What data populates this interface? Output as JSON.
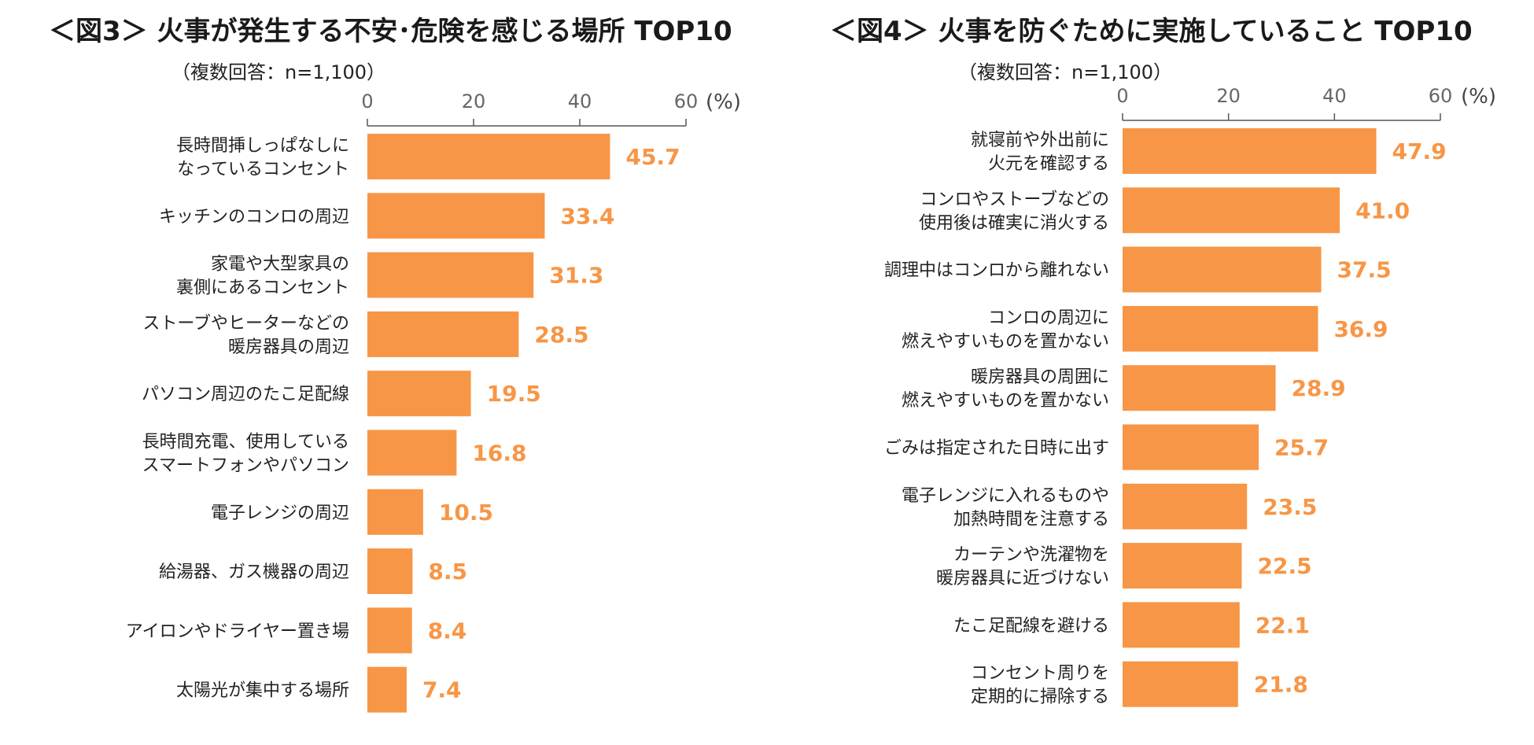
{
  "chart_data": [
    {
      "type": "bar",
      "orientation": "horizontal",
      "title": "＜図3＞ 火事が発生する不安･危険を感じる場所 TOP10",
      "subtitle": "（複数回答：n=1,100）",
      "unit": "(%)",
      "xlim": [
        0,
        60
      ],
      "ticks": [
        0,
        20,
        40,
        60
      ],
      "categories": [
        "長時間挿しっぱなしに\nなっているコンセント",
        "キッチンのコンロの周辺",
        "家電や大型家具の\n裏側にあるコンセント",
        "ストーブやヒーターなどの\n暖房器具の周辺",
        "パソコン周辺のたこ足配線",
        "長時間充電、使用している\nスマートフォンやパソコン",
        "電子レンジの周辺",
        "給湯器、ガス機器の周辺",
        "アイロンやドライヤー置き場",
        "太陽光が集中する場所"
      ],
      "values": [
        45.7,
        33.4,
        31.3,
        28.5,
        19.5,
        16.8,
        10.5,
        8.5,
        8.4,
        7.4
      ],
      "bar_color": "#F79646",
      "value_label_color": "#F79646"
    },
    {
      "type": "bar",
      "orientation": "horizontal",
      "title": "＜図4＞ 火事を防ぐために実施していること TOP10",
      "subtitle": "（複数回答：n=1,100）",
      "unit": "(%)",
      "xlim": [
        0,
        60
      ],
      "ticks": [
        0,
        20,
        40,
        60
      ],
      "categories": [
        "就寝前や外出前に\n火元を確認する",
        "コンロやストーブなどの\n使用後は確実に消火する",
        "調理中はコンロから離れない",
        "コンロの周辺に\n燃えやすいものを置かない",
        "暖房器具の周囲に\n燃えやすいものを置かない",
        "ごみは指定された日時に出す",
        "電子レンジに入れるものや\n加熱時間を注意する",
        "カーテンや洗濯物を\n暖房器具に近づけない",
        "たこ足配線を避ける",
        "コンセント周りを\n定期的に掃除する"
      ],
      "values": [
        47.9,
        41.0,
        37.5,
        36.9,
        28.9,
        25.7,
        23.5,
        22.5,
        22.1,
        21.8
      ],
      "bar_color": "#F79646",
      "value_label_color": "#F79646"
    }
  ]
}
